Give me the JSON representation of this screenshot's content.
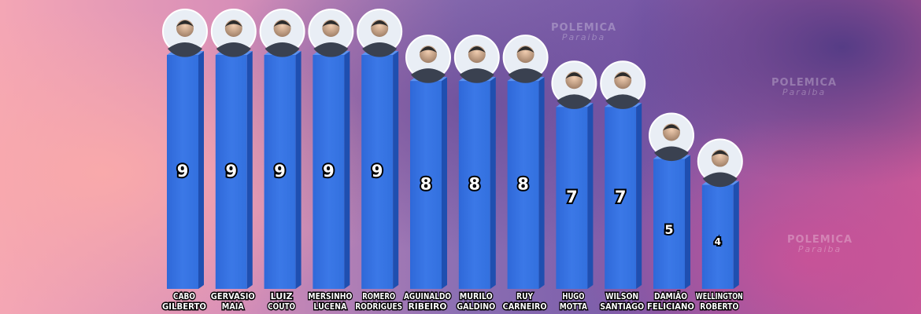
{
  "watermark": {
    "line1": "POLEMICA",
    "line2": "Paraiba"
  },
  "chart_data": {
    "type": "bar",
    "categories": [
      [
        "CABO",
        "GILBERTO"
      ],
      [
        "GERVASIO",
        "MAIA"
      ],
      [
        "LUIZ",
        "COUTO"
      ],
      [
        "MERSINHO",
        "LUCENA"
      ],
      [
        "ROMERO",
        "RODRIGUES"
      ],
      [
        "AGUINALDO",
        "RIBEIRO"
      ],
      [
        "MURILO",
        "GALDINO"
      ],
      [
        "RUY",
        "CARNEIRO"
      ],
      [
        "HUGO",
        "MOTTA"
      ],
      [
        "WILSON",
        "SANTIAGO"
      ],
      [
        "DAMIÃO",
        "FELICIANO"
      ],
      [
        "WELLINGTON",
        "ROBERTO"
      ]
    ],
    "values": [
      9,
      9,
      9,
      9,
      9,
      8,
      8,
      8,
      7,
      7,
      5,
      4
    ],
    "bar_color": "#3b78e7",
    "avatar_icon": "person-photo-avatar"
  }
}
